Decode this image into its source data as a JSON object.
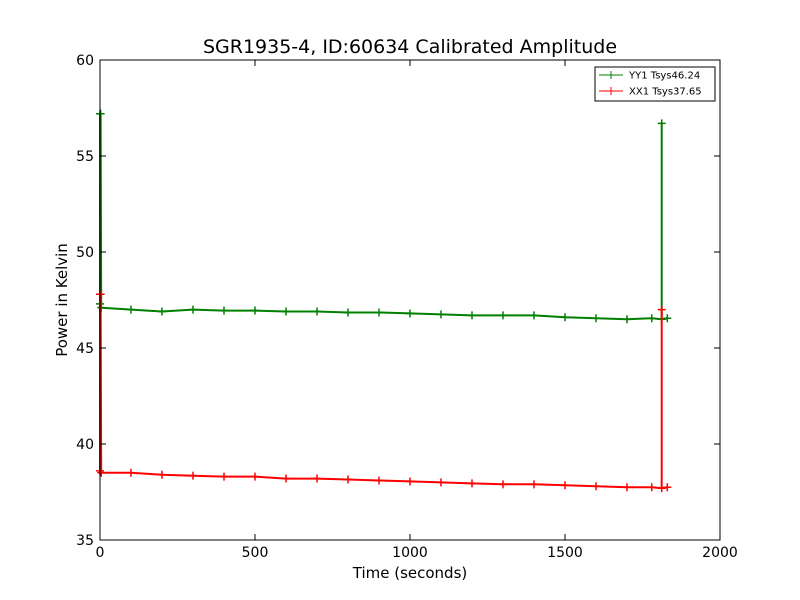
{
  "chart_data": {
    "type": "line",
    "title": "SGR1935-4, ID:60634 Calibrated Amplitude",
    "xlabel": "Time (seconds)",
    "ylabel": "Power in Kelvin",
    "xlim": [
      0,
      2000
    ],
    "ylim": [
      35,
      60
    ],
    "x_ticks": [
      0,
      500,
      1000,
      1500,
      2000
    ],
    "y_ticks": [
      35,
      40,
      45,
      50,
      55,
      60
    ],
    "grid": false,
    "legend_position": "top-right",
    "series": [
      {
        "name": "YY1 Tsys46.24",
        "color": "#008000",
        "marker": "+",
        "x": [
          0,
          0,
          2,
          4,
          100,
          200,
          300,
          400,
          500,
          600,
          700,
          800,
          900,
          1000,
          1100,
          1200,
          1300,
          1400,
          1500,
          1600,
          1700,
          1780,
          1812,
          1812,
          1812,
          1830
        ],
        "y": [
          57.2,
          47.3,
          57.2,
          47.1,
          47.0,
          46.9,
          47.0,
          46.95,
          46.95,
          46.9,
          46.9,
          46.85,
          46.85,
          46.8,
          46.75,
          46.7,
          46.7,
          46.7,
          46.6,
          46.55,
          46.5,
          46.55,
          46.5,
          56.7,
          46.5,
          46.55
        ]
      },
      {
        "name": "XX1 Tsys37.65",
        "color": "#ff0000",
        "marker": "+",
        "x": [
          0,
          0,
          2,
          4,
          100,
          200,
          300,
          400,
          500,
          600,
          700,
          800,
          900,
          1000,
          1100,
          1200,
          1300,
          1400,
          1500,
          1600,
          1700,
          1780,
          1812,
          1812,
          1812,
          1830
        ],
        "y": [
          47.8,
          38.6,
          47.8,
          38.5,
          38.5,
          38.4,
          38.35,
          38.3,
          38.3,
          38.2,
          38.2,
          38.15,
          38.1,
          38.05,
          38.0,
          37.95,
          37.9,
          37.9,
          37.85,
          37.8,
          37.75,
          37.75,
          37.7,
          47.0,
          37.7,
          37.75
        ]
      }
    ]
  }
}
